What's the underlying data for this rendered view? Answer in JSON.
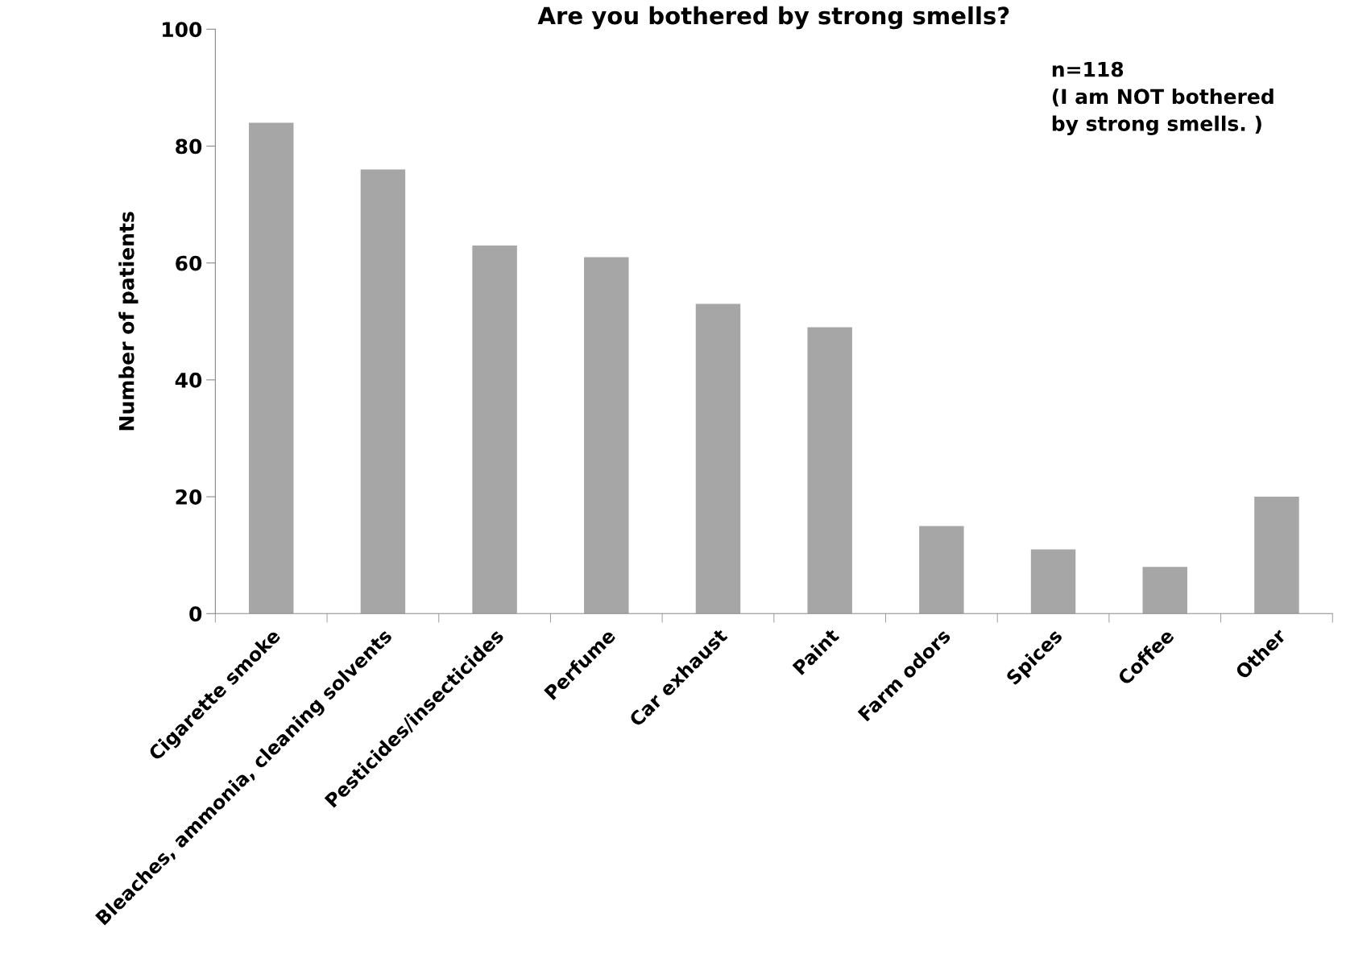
{
  "chart_data": {
    "type": "bar",
    "title": "Are you bothered by strong smells?",
    "ylabel": "Number of patients",
    "categories": [
      "Cigarette smoke",
      "Bleaches, ammonia, cleaning solvents",
      "Pesticides/insecticides",
      "Perfume",
      "Car exhaust",
      "Paint",
      "Farm odors",
      "Spices",
      "Coffee",
      "Other"
    ],
    "values": [
      84,
      76,
      63,
      61,
      53,
      49,
      15,
      11,
      8,
      20
    ],
    "color": "#a6a6a6",
    "ylim": [
      0,
      100
    ],
    "yticks": [
      0,
      20,
      40,
      60,
      80,
      100
    ],
    "grid": false,
    "annotations": [
      "n=118\n(I am NOT bothered\nby strong smells. )"
    ]
  }
}
